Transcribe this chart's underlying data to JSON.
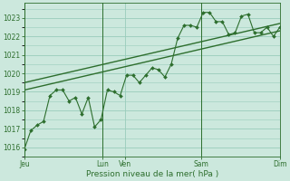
{
  "title": "",
  "xlabel": "Pression niveau de la mer( hPa )",
  "ylabel": "",
  "bg_color": "#cce8dd",
  "grid_color": "#99ccbb",
  "line_color": "#2d6e2d",
  "trend_color": "#2d6e2d",
  "ylim": [
    1015.5,
    1023.8
  ],
  "yticks": [
    1016,
    1017,
    1018,
    1019,
    1020,
    1021,
    1022,
    1023
  ],
  "xtick_labels": [
    "Jeu",
    "Lun",
    "Ven",
    "Sam",
    "Dim"
  ],
  "xtick_positions": [
    0,
    0.307,
    0.393,
    0.693,
    1.0
  ],
  "data_x": [
    0.0,
    0.025,
    0.05,
    0.075,
    0.1,
    0.125,
    0.15,
    0.175,
    0.2,
    0.225,
    0.25,
    0.275,
    0.3,
    0.325,
    0.35,
    0.375,
    0.4,
    0.425,
    0.45,
    0.475,
    0.5,
    0.525,
    0.55,
    0.575,
    0.6,
    0.625,
    0.65,
    0.675,
    0.7,
    0.725,
    0.75,
    0.775,
    0.8,
    0.825,
    0.85,
    0.875,
    0.9,
    0.925,
    0.95,
    0.975,
    1.0
  ],
  "data_y": [
    1015.9,
    1016.9,
    1017.2,
    1017.4,
    1018.8,
    1019.1,
    1019.1,
    1018.5,
    1018.7,
    1017.8,
    1018.7,
    1017.1,
    1017.5,
    1019.1,
    1019.0,
    1018.8,
    1019.9,
    1019.9,
    1019.5,
    1019.9,
    1020.3,
    1020.2,
    1019.8,
    1020.5,
    1021.9,
    1022.6,
    1022.6,
    1022.5,
    1023.3,
    1023.3,
    1022.8,
    1022.8,
    1022.1,
    1022.2,
    1023.1,
    1023.2,
    1022.2,
    1022.2,
    1022.5,
    1022.0,
    1022.5
  ],
  "trend1_x": [
    0.0,
    1.0
  ],
  "trend1_y": [
    1019.1,
    1022.3
  ],
  "trend2_x": [
    0.0,
    1.0
  ],
  "trend2_y": [
    1019.5,
    1022.7
  ],
  "vline_positions": [
    0.0,
    0.307,
    0.693,
    1.0
  ],
  "figsize": [
    3.2,
    2.0
  ],
  "dpi": 100
}
